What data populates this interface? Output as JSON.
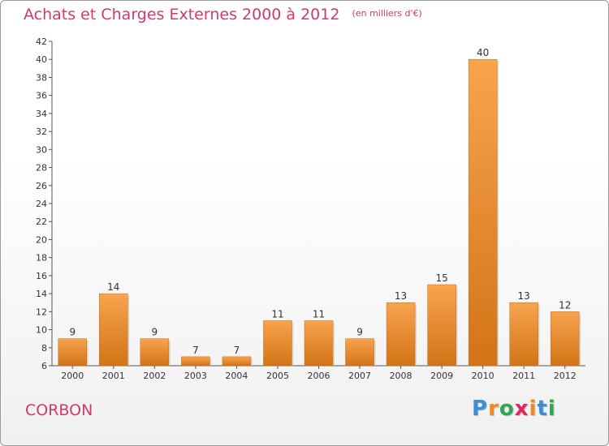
{
  "chart_data": {
    "type": "bar",
    "title": "Achats et Charges Externes 2000 à 2012",
    "subtitle": "(en milliers d'€)",
    "categories": [
      "2000",
      "2001",
      "2002",
      "2003",
      "2004",
      "2005",
      "2006",
      "2007",
      "2008",
      "2009",
      "2010",
      "2011",
      "2012"
    ],
    "values": [
      9,
      14,
      9,
      7,
      7,
      11,
      11,
      9,
      13,
      15,
      40,
      13,
      12
    ],
    "ylim": [
      6,
      42
    ],
    "yticks": [
      6,
      8,
      10,
      12,
      14,
      16,
      18,
      20,
      22,
      24,
      26,
      28,
      30,
      32,
      34,
      36,
      38,
      40,
      42
    ],
    "grid": false,
    "bar_color_top": "#f8a44e",
    "bar_color_bottom": "#d27417"
  },
  "footer": {
    "town": "CORBON",
    "logo": {
      "letters": [
        "P",
        "r",
        "o",
        "x",
        "i",
        "t",
        "i"
      ],
      "colors": [
        "#3a8fd6",
        "#f08a1c",
        "#2fa84f",
        "#e0245c",
        "#f08a1c",
        "#3a8fd6",
        "#2fa84f"
      ]
    }
  }
}
